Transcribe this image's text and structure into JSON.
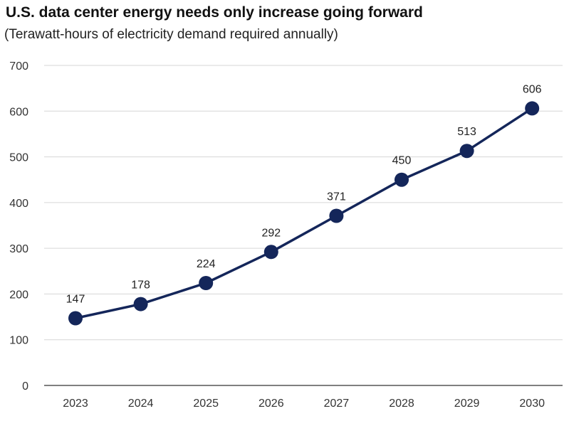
{
  "title": "U.S. data center energy needs only increase going forward",
  "subtitle": "(Terawatt-hours of electricity demand required annually)",
  "chart_data": {
    "type": "line",
    "categories": [
      "2023",
      "2024",
      "2025",
      "2026",
      "2027",
      "2028",
      "2029",
      "2030"
    ],
    "series": [
      {
        "values": [
          147,
          178,
          224,
          292,
          371,
          450,
          513,
          606
        ]
      }
    ],
    "ylim": [
      0,
      700
    ],
    "yticks": [
      0,
      100,
      200,
      300,
      400,
      500,
      600,
      700
    ],
    "grid": true,
    "data_labels": true,
    "color": "#14265a"
  }
}
